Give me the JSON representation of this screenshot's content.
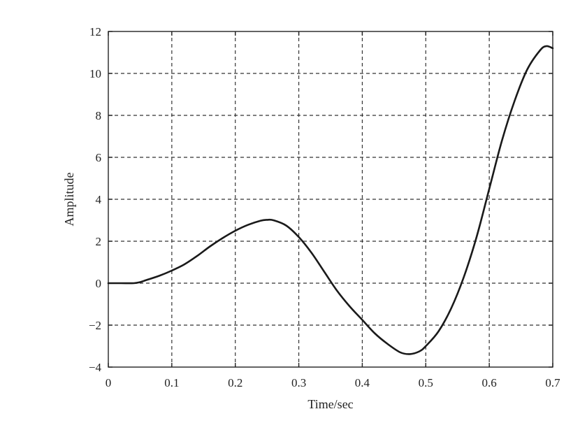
{
  "chart_data": {
    "type": "line",
    "title": "",
    "xlabel": "Time/sec",
    "ylabel": "Amplitude",
    "xlim": [
      0,
      0.7
    ],
    "ylim": [
      -4,
      12
    ],
    "x_ticks": [
      0,
      0.1,
      0.2,
      0.3,
      0.4,
      0.5,
      0.6,
      0.7
    ],
    "x_tick_labels": [
      "0",
      "0.1",
      "0.2",
      "0.3",
      "0.4",
      "0.5",
      "0.6",
      "0.7"
    ],
    "y_ticks": [
      -4,
      -2,
      0,
      2,
      4,
      6,
      8,
      10,
      12
    ],
    "y_tick_labels": [
      "−4",
      "−2",
      "0",
      "2",
      "4",
      "6",
      "8",
      "10",
      "12"
    ],
    "grid": true,
    "legend": "none",
    "line_color": "#1a1a1a",
    "series": [
      {
        "x": [
          0,
          0.02,
          0.04,
          0.05,
          0.06,
          0.08,
          0.1,
          0.12,
          0.14,
          0.16,
          0.18,
          0.2,
          0.22,
          0.24,
          0.25,
          0.26,
          0.28,
          0.3,
          0.32,
          0.34,
          0.36,
          0.38,
          0.4,
          0.42,
          0.44,
          0.46,
          0.475,
          0.49,
          0.5,
          0.52,
          0.54,
          0.56,
          0.58,
          0.6,
          0.62,
          0.64,
          0.66,
          0.68,
          0.69,
          0.7
        ],
        "y": [
          0,
          0,
          0,
          0.05,
          0.15,
          0.35,
          0.6,
          0.9,
          1.3,
          1.75,
          2.15,
          2.5,
          2.78,
          2.98,
          3.02,
          3.0,
          2.75,
          2.2,
          1.45,
          0.55,
          -0.35,
          -1.1,
          -1.75,
          -2.4,
          -2.9,
          -3.3,
          -3.38,
          -3.25,
          -3.0,
          -2.3,
          -1.2,
          0.3,
          2.2,
          4.5,
          6.8,
          8.7,
          10.2,
          11.1,
          11.3,
          11.2
        ]
      }
    ]
  }
}
